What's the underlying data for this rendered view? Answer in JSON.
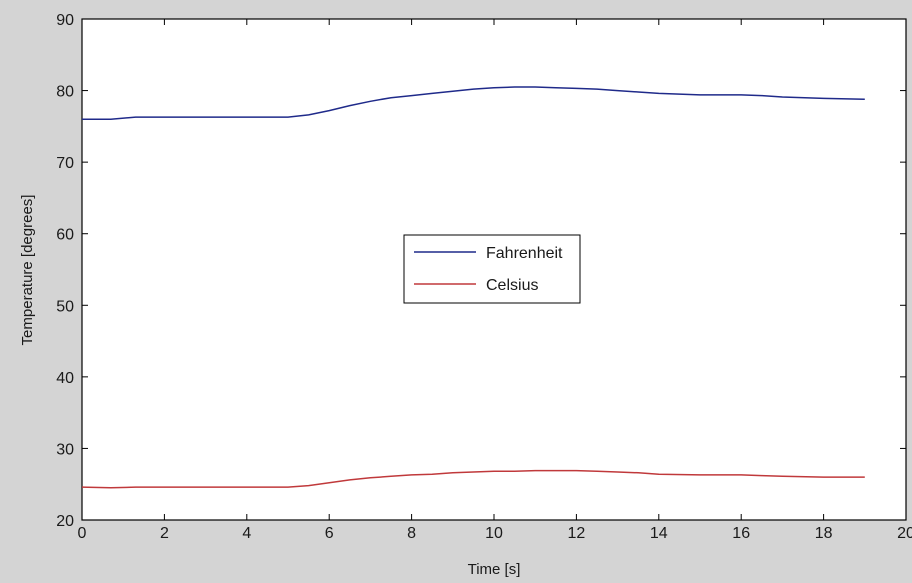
{
  "chart_data": {
    "type": "line",
    "title": "",
    "xlabel": "Time [s]",
    "ylabel": "Temperature [degrees]",
    "xlim": [
      0,
      20
    ],
    "ylim": [
      20,
      90
    ],
    "xticks": [
      0,
      2,
      4,
      6,
      8,
      10,
      12,
      14,
      16,
      18,
      20
    ],
    "yticks": [
      20,
      30,
      40,
      50,
      60,
      70,
      80,
      90
    ],
    "xtick_labels": [
      "0",
      "2",
      "4",
      "6",
      "8",
      "10",
      "12",
      "14",
      "16",
      "18",
      "20"
    ],
    "ytick_labels": [
      "20",
      "30",
      "40",
      "50",
      "60",
      "70",
      "80",
      "90"
    ],
    "grid": false,
    "legend_position": "center",
    "series": [
      {
        "name": "Fahrenheit",
        "color": "#1f2a8a",
        "x": [
          0,
          0.7,
          1.3,
          2,
          3,
          4,
          5,
          5.5,
          6,
          6.5,
          7,
          7.5,
          8,
          8.5,
          9,
          9.5,
          10,
          10.5,
          11,
          11.5,
          12,
          12.5,
          13,
          13.5,
          14,
          15,
          16,
          16.5,
          17,
          18,
          19
        ],
        "values": [
          76.0,
          76.0,
          76.3,
          76.3,
          76.3,
          76.3,
          76.3,
          76.6,
          77.2,
          77.9,
          78.5,
          79.0,
          79.3,
          79.6,
          79.9,
          80.2,
          80.4,
          80.5,
          80.5,
          80.4,
          80.3,
          80.2,
          80.0,
          79.8,
          79.6,
          79.4,
          79.4,
          79.3,
          79.1,
          78.9,
          78.8
        ]
      },
      {
        "name": "Celsius",
        "color": "#c0393b",
        "x": [
          0,
          0.7,
          1.3,
          2,
          3,
          4,
          5,
          5.5,
          6,
          6.5,
          7,
          7.5,
          8,
          8.5,
          9,
          9.5,
          10,
          10.5,
          11,
          11.5,
          12,
          12.5,
          13,
          13.5,
          14,
          15,
          16,
          16.5,
          17,
          18,
          19
        ],
        "values": [
          24.6,
          24.5,
          24.6,
          24.6,
          24.6,
          24.6,
          24.6,
          24.8,
          25.2,
          25.6,
          25.9,
          26.1,
          26.3,
          26.4,
          26.6,
          26.7,
          26.8,
          26.8,
          26.9,
          26.9,
          26.9,
          26.8,
          26.7,
          26.6,
          26.4,
          26.3,
          26.3,
          26.2,
          26.1,
          26.0,
          26.0
        ]
      }
    ]
  }
}
